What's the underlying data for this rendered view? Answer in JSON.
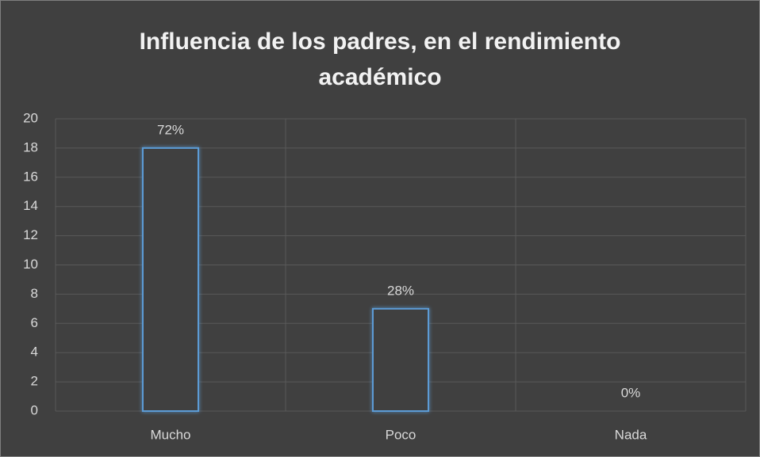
{
  "chart_data": {
    "type": "bar",
    "title": "Influencia de los padres, en el rendimiento académico",
    "categories": [
      "Mucho",
      "Poco",
      "Nada"
    ],
    "values": [
      18,
      7,
      0
    ],
    "percent_labels": [
      "72%",
      "28%",
      "0%"
    ],
    "color": "#5b9bd5",
    "ylim": [
      0,
      20
    ],
    "yticks": [
      0,
      2,
      4,
      6,
      8,
      10,
      12,
      14,
      16,
      18,
      20
    ],
    "grid": true
  }
}
